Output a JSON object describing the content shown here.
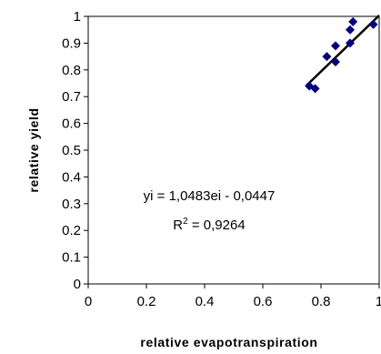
{
  "chart_data": {
    "type": "scatter",
    "xlabel": "relative evapotranspiration",
    "ylabel": "relative yield",
    "xlim": [
      0,
      1
    ],
    "ylim": [
      0,
      1
    ],
    "x_ticks": [
      "0",
      "0.2",
      "0.4",
      "0.6",
      "0.8",
      "1"
    ],
    "y_ticks": [
      "0",
      "0.1",
      "0.2",
      "0.3",
      "0.4",
      "0.5",
      "0.6",
      "0.7",
      "0.8",
      "0.9",
      "1"
    ],
    "points": [
      {
        "x": 0.76,
        "y": 0.74
      },
      {
        "x": 0.78,
        "y": 0.73
      },
      {
        "x": 0.82,
        "y": 0.85
      },
      {
        "x": 0.85,
        "y": 0.89
      },
      {
        "x": 0.85,
        "y": 0.83
      },
      {
        "x": 0.9,
        "y": 0.9
      },
      {
        "x": 0.9,
        "y": 0.95
      },
      {
        "x": 0.91,
        "y": 0.98
      },
      {
        "x": 0.98,
        "y": 0.97
      }
    ],
    "trendline": {
      "slope": 1.0483,
      "intercept": -0.0447,
      "x_range": [
        0.75,
        1.0
      ]
    },
    "equation": "yi = 1,0483ei - 0,0447",
    "r_squared_label": "R",
    "r_squared_exponent": "2",
    "r_squared_value": " = 0,9264",
    "marker_color": "#000080",
    "line_color": "#000000",
    "grid": false,
    "legend": "none"
  }
}
